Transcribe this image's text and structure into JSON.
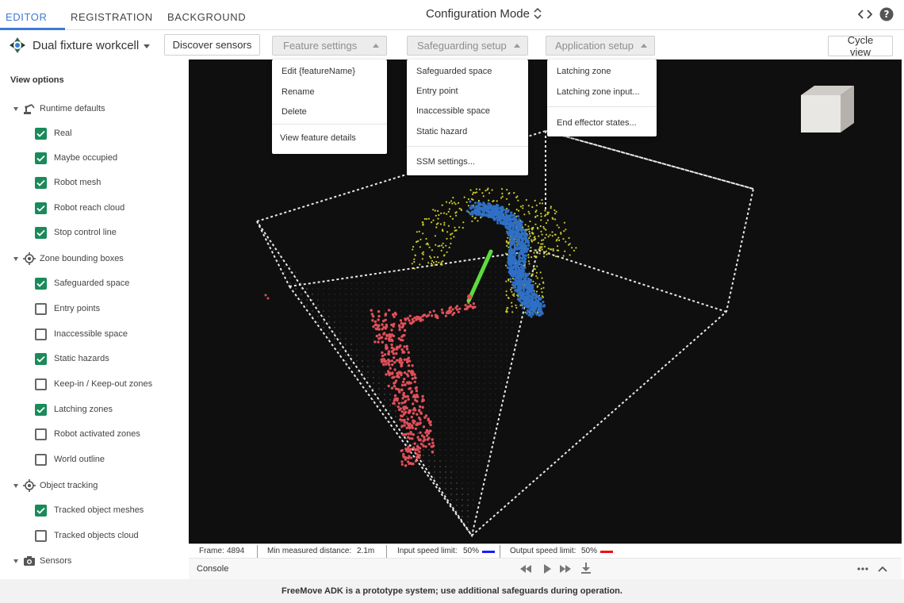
{
  "tabs": [
    {
      "label": "EDITOR",
      "active": true
    },
    {
      "label": "REGISTRATION",
      "active": false
    },
    {
      "label": "BACKGROUND",
      "active": false
    }
  ],
  "header": {
    "mode_title": "Configuration Mode",
    "code_icon": "code-brackets-icon",
    "help_icon": "help-circle-icon"
  },
  "toolbar": {
    "workcell_name": "Dual fixture workcell",
    "discover_sensors": "Discover sensors",
    "feature_settings": "Feature settings",
    "safeguarding_setup": "Safeguarding setup",
    "application_setup": "Application setup",
    "cycle_view": "Cycle view"
  },
  "menus": {
    "feature_settings": [
      "Edit {featureName}",
      "Rename",
      "Delete",
      "View feature details"
    ],
    "safeguarding_setup": [
      "Safeguarded space",
      "Entry point",
      "Inaccessible space",
      "Static hazard",
      "SSM settings..."
    ],
    "application_setup": [
      "Latching zone",
      "Latching zone input...",
      "End effector states..."
    ]
  },
  "sidebar": {
    "title": "View options",
    "groups": [
      {
        "label": "Runtime defaults",
        "icon": "robot-arm-icon",
        "items": [
          {
            "label": "Real",
            "checked": true
          },
          {
            "label": "Maybe occupied",
            "checked": true
          },
          {
            "label": "Robot mesh",
            "checked": true
          },
          {
            "label": "Robot reach cloud",
            "checked": true
          },
          {
            "label": "Stop control line",
            "checked": true
          }
        ]
      },
      {
        "label": "Zone bounding boxes",
        "icon": "target-icon",
        "items": [
          {
            "label": "Safeguarded space",
            "checked": true
          },
          {
            "label": "Entry points",
            "checked": false
          },
          {
            "label": "Inaccessible space",
            "checked": false
          },
          {
            "label": "Static hazards",
            "checked": true
          },
          {
            "label": "Keep-in / Keep-out zones",
            "checked": false
          },
          {
            "label": "Latching zones",
            "checked": true
          },
          {
            "label": "Robot activated zones",
            "checked": false
          },
          {
            "label": "World outline",
            "checked": false
          }
        ]
      },
      {
        "label": "Object tracking",
        "icon": "target-icon",
        "items": [
          {
            "label": "Tracked object meshes",
            "checked": true
          },
          {
            "label": "Tracked objects cloud",
            "checked": false
          }
        ]
      },
      {
        "label": "Sensors",
        "icon": "camera-icon",
        "items": []
      }
    ]
  },
  "status": {
    "frame_label": "Frame:",
    "frame_value": "4894",
    "min_distance_label": "Min measured distance:",
    "min_distance_value": "2.1m",
    "input_speed_label": "Input speed limit:",
    "input_speed_value": "50%",
    "output_speed_label": "Output speed limit:",
    "output_speed_value": "50%",
    "input_color": "#1a1aff",
    "output_color": "#ee1111"
  },
  "console": {
    "label": "Console",
    "icons": [
      "rewind-icon",
      "play-icon",
      "fast-forward-icon",
      "download-icon",
      "more-horizontal-icon",
      "chevron-up-icon"
    ]
  },
  "footer": {
    "text": "FreeMove ADK is a prototype system; use additional safeguards during operation."
  },
  "colors": {
    "accent": "#3a7bd5",
    "checkbox": "#1a8a5a",
    "viewport_bg": "#0f0f0f",
    "reach_cloud": "#c8c832",
    "robot_mesh": "#2f6fc4",
    "person_cloud": "#e0505a",
    "stop_line": "#5ddc3c"
  }
}
